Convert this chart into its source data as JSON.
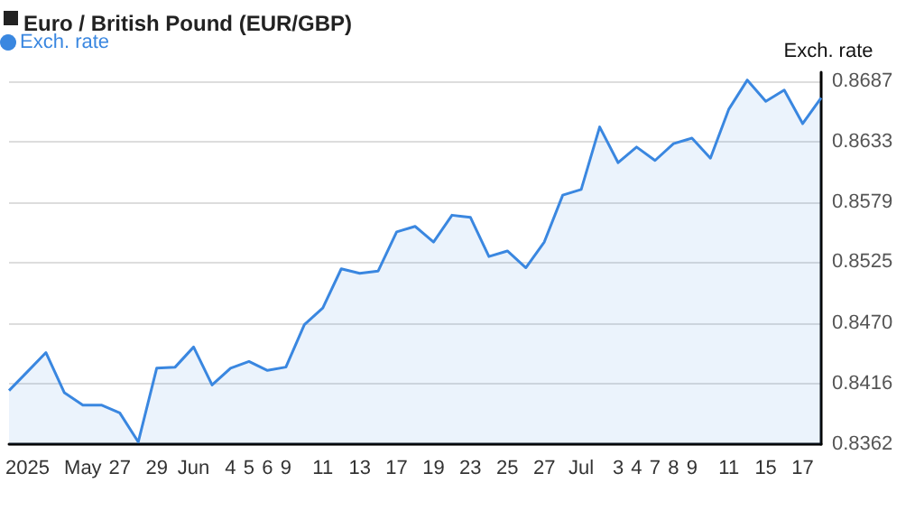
{
  "chart_data": {
    "type": "area",
    "title": "Euro / British Pound (EUR/GBP)",
    "ylabel": "Exch. rate",
    "categories": [
      null,
      "2025",
      null,
      null,
      "May",
      null,
      "27",
      null,
      "29",
      null,
      "Jun",
      null,
      "4",
      "5",
      "6",
      "9",
      null,
      "11",
      null,
      "13",
      null,
      "17",
      null,
      "19",
      null,
      "23",
      null,
      "25",
      null,
      "27",
      null,
      "Jul",
      null,
      "3",
      "4",
      "7",
      "8",
      "9",
      null,
      "11",
      null,
      "15",
      null,
      "17",
      null
    ],
    "series": [
      {
        "name": "Exch. rate",
        "color": "#3a87e0",
        "values": [
          0.841,
          0.8427,
          0.8444,
          0.8408,
          0.8397,
          0.8397,
          0.839,
          0.8364,
          0.843,
          0.8431,
          0.8449,
          0.8415,
          0.843,
          0.8436,
          0.8428,
          0.8431,
          0.8469,
          0.8484,
          0.8519,
          0.8515,
          0.8517,
          0.8552,
          0.8557,
          0.8543,
          0.8567,
          0.8565,
          0.853,
          0.8535,
          0.852,
          0.8543,
          0.8585,
          0.859,
          0.8646,
          0.8614,
          0.8628,
          0.8616,
          0.8631,
          0.8636,
          0.8618,
          0.8662,
          0.8688,
          0.8669,
          0.8679,
          0.8649,
          0.8672
        ]
      }
    ],
    "ylim": [
      0.8362,
      0.8695
    ],
    "yticks": [
      0.8362,
      0.8416,
      {
        "value": 0.847,
        "label": "0.8470"
      },
      0.8525,
      0.8579,
      0.8633,
      0.8687
    ],
    "grid": "y",
    "legend": "top left",
    "marker": "none",
    "line_style": "solid"
  }
}
